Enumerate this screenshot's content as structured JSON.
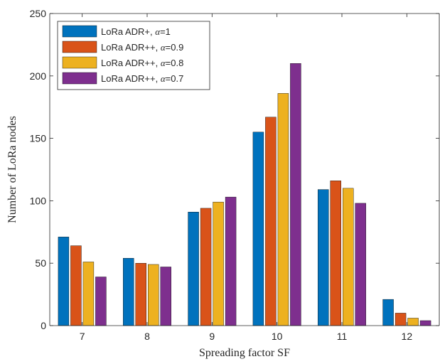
{
  "chart_data": {
    "type": "bar",
    "xlabel": "Spreading factor SF",
    "ylabel": "Number of LoRa nodes",
    "ylim": [
      0,
      250
    ],
    "yticks": [
      "0",
      "50",
      "100",
      "150",
      "200",
      "250"
    ],
    "categories": [
      "7",
      "8",
      "9",
      "10",
      "11",
      "12"
    ],
    "grid": "off",
    "legend_position": "top-left",
    "series": [
      {
        "name": "LoRa ADR+, ",
        "alpha_symbol": "α",
        "alpha_value": "=1",
        "color": "#0072BD",
        "values": [
          71,
          54,
          91,
          155,
          109,
          21
        ]
      },
      {
        "name": "LoRa ADR++, ",
        "alpha_symbol": "α",
        "alpha_value": "=0.9",
        "color": "#D95319",
        "values": [
          64,
          50,
          94,
          167,
          116,
          10
        ]
      },
      {
        "name": "LoRa ADR++, ",
        "alpha_symbol": "α",
        "alpha_value": "=0.8",
        "color": "#EDB120",
        "values": [
          51,
          49,
          99,
          186,
          110,
          6
        ]
      },
      {
        "name": "LoRa ADR++, ",
        "alpha_symbol": "α",
        "alpha_value": "=0.7",
        "color": "#7E2F8E",
        "values": [
          39,
          47,
          103,
          210,
          98,
          4
        ]
      }
    ]
  }
}
